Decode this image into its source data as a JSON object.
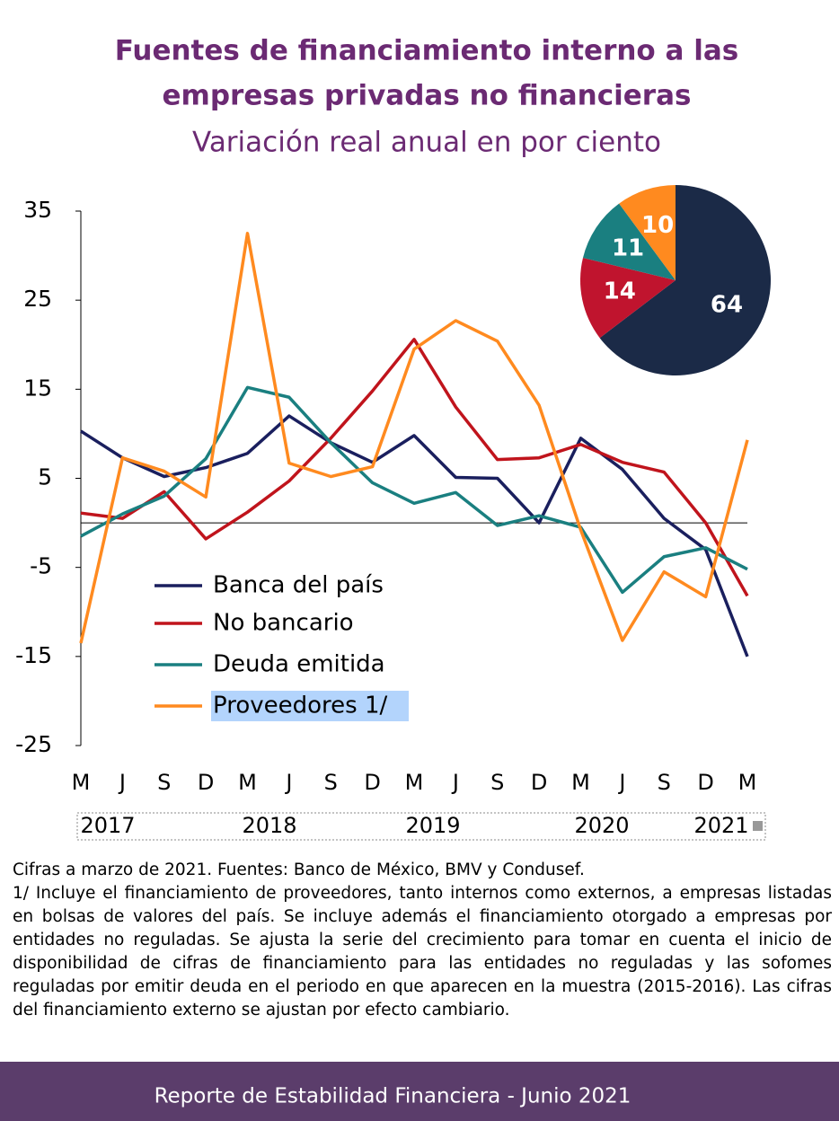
{
  "chart_data": [
    {
      "type": "line",
      "title": [
        "Fuentes de financiamiento interno a las",
        "empresas privadas no financieras"
      ],
      "subtitle": "Variación real anual en por ciento",
      "categories": [
        "M",
        "J",
        "S",
        "D",
        "M",
        "J",
        "S",
        "D",
        "M",
        "J",
        "S",
        "D",
        "M",
        "J",
        "S",
        "D",
        "M"
      ],
      "years": [
        "2017",
        "2018",
        "2019",
        "2020",
        "2021"
      ],
      "ylim": [
        -25,
        35
      ],
      "yticks": [
        35,
        25,
        15,
        5,
        -5,
        -15,
        -25
      ],
      "series": [
        {
          "name": "Banca del país",
          "color": "#1a1f5e",
          "values": [
            10.3,
            7.3,
            5.2,
            6.2,
            7.8,
            12,
            9,
            6.8,
            9.8,
            5.1,
            5,
            0,
            9.5,
            6,
            0.5,
            -3,
            -15
          ]
        },
        {
          "name": "No bancario",
          "color": "#c0141c",
          "values": [
            1.1,
            0.5,
            3.5,
            -1.8,
            1.2,
            4.7,
            9.5,
            14.8,
            20.6,
            13,
            7.1,
            7.3,
            8.8,
            6.8,
            5.7,
            0,
            -8.2
          ]
        },
        {
          "name": "Deuda emitida",
          "color": "#1a7f80",
          "values": [
            -1.5,
            1,
            3,
            7.2,
            15.2,
            14.1,
            9,
            4.5,
            2.2,
            3.4,
            -0.3,
            0.8,
            -0.5,
            -7.8,
            -3.8,
            -2.8,
            -5.2
          ]
        },
        {
          "name": "Proveedores 1/",
          "color": "#ff8a1f",
          "values": [
            -13.5,
            7.3,
            5.8,
            2.9,
            32.5,
            6.7,
            5.2,
            6.3,
            19.5,
            22.7,
            20.4,
            13.2,
            -0.8,
            -13.2,
            -5.5,
            -8.3,
            9.3
          ]
        }
      ]
    },
    {
      "type": "pie",
      "values": [
        64,
        14,
        11,
        10
      ],
      "colors": [
        "#1b2a47",
        "#c0142e",
        "#1a7f80",
        "#ff8a1f"
      ]
    }
  ],
  "notes": [
    "Cifras a marzo de 2021. Fuentes: Banco de México, BMV y Condusef.",
    "1/ Incluye el financiamiento de proveedores, tanto internos como externos, a empresas listadas en bolsas de valores del país. Se incluye además el financiamiento otorgado a empresas por entidades no reguladas. Se ajusta la serie del crecimiento para tomar en cuenta el inicio de disponibilidad de cifras de financiamiento para las entidades no reguladas y las sofomes reguladas por emitir deuda en el periodo en que aparecen en la muestra (2015-2016). Las cifras del financiamiento externo se ajustan por efecto cambiario."
  ],
  "footer": "Reporte de Estabilidad Financiera - Junio 2021"
}
